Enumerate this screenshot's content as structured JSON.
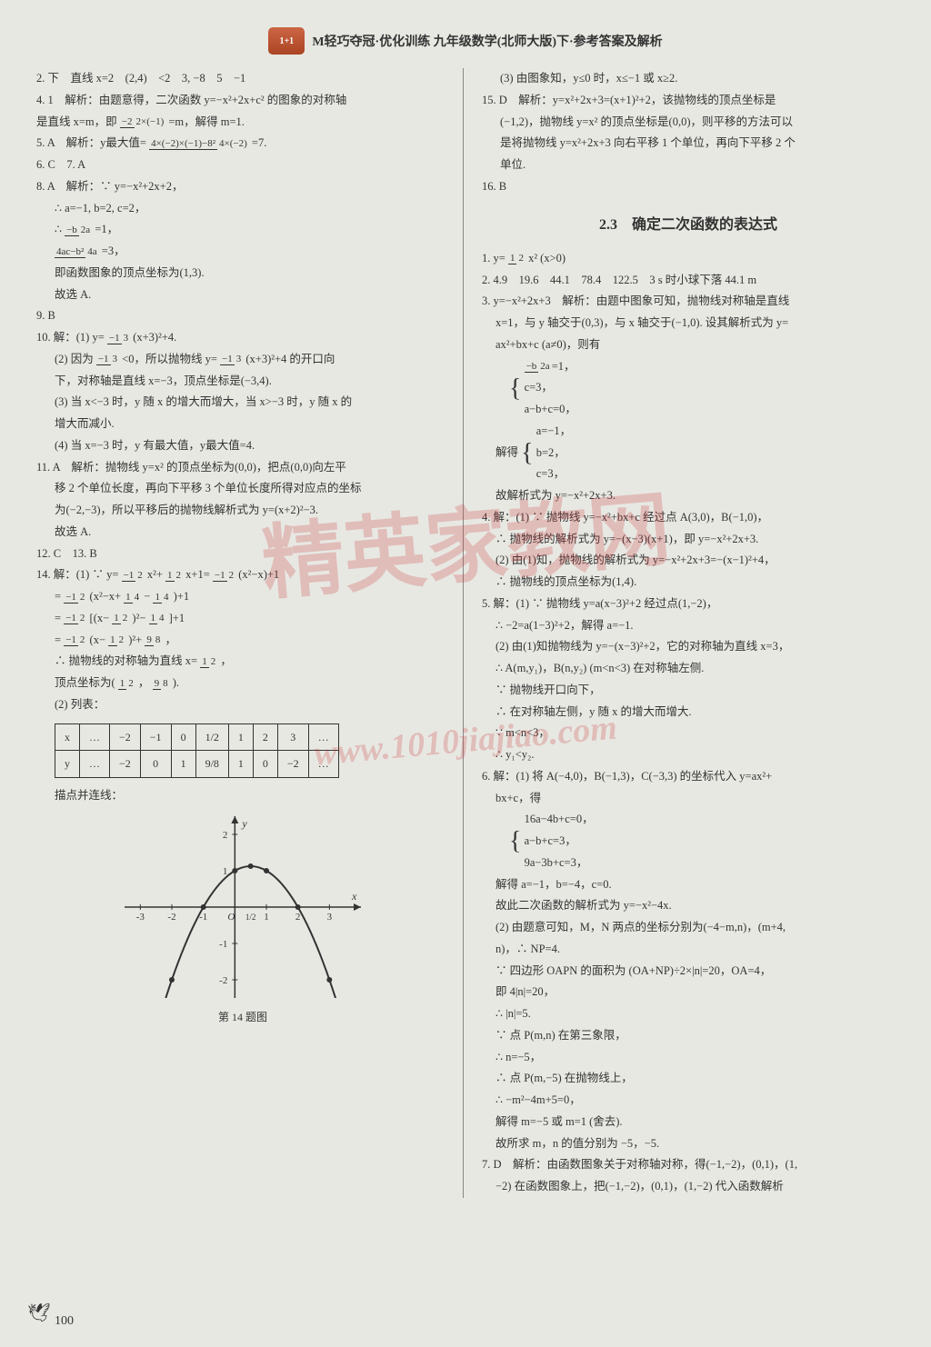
{
  "header": {
    "badge": "1+1",
    "title": "M轻巧夺冠·优化训练 九年级数学(北师大版)下·参考答案及解析"
  },
  "watermark": {
    "text": "精英家教网",
    "url": "www.1010jiajiao.com"
  },
  "left_column": {
    "line2": "2. 下　直线 x=2　(2,4)　<2　3, −8　5　−1",
    "line4_1": "4. 1　解析：由题意得，二次函数 y=−x²+2x+c² 的图象的对称轴",
    "line4_2": "是直线 x=m，即",
    "line4_frac": {
      "num": "−2",
      "den": "2×(−1)"
    },
    "line4_3": "=m，解得 m=1.",
    "line5_1": "5. A　解析：y最大值=",
    "line5_frac": {
      "num": "4×(−2)×(−1)−8²",
      "den": "4×(−2)"
    },
    "line5_2": "=7.",
    "line6": "6. C　7. A",
    "line8_1": "8. A　解析：∵ y=−x²+2x+2，",
    "line8_2": "∴ a=−1, b=2, c=2，",
    "line8_3": "∴",
    "line8_frac1": {
      "num": "−b",
      "den": "2a"
    },
    "line8_4": "=1，",
    "line8_frac2": {
      "num": "4ac−b²",
      "den": "4a"
    },
    "line8_5": "=3，",
    "line8_6": "即函数图象的顶点坐标为(1,3).",
    "line8_7": "故选 A.",
    "line9": "9. B",
    "line10_1": "10. 解：(1) y=",
    "line10_frac1": {
      "num": "−1",
      "den": "3"
    },
    "line10_2": "(x+3)²+4.",
    "line10_3": "(2) 因为",
    "line10_frac2": {
      "num": "−1",
      "den": "3"
    },
    "line10_4": "<0，所以抛物线 y=",
    "line10_frac3": {
      "num": "−1",
      "den": "3"
    },
    "line10_5": "(x+3)²+4 的开口向",
    "line10_6": "下，对称轴是直线 x=−3，顶点坐标是(−3,4).",
    "line10_7": "(3) 当 x<−3 时，y 随 x 的增大而增大，当 x>−3 时，y 随 x 的",
    "line10_8": "增大而减小.",
    "line10_9": "(4) 当 x=−3 时，y 有最大值，y最大值=4.",
    "line11_1": "11. A　解析：抛物线 y=x² 的顶点坐标为(0,0)，把点(0,0)向左平",
    "line11_2": "移 2 个单位长度，再向下平移 3 个单位长度所得对应点的坐标",
    "line11_3": "为(−2,−3)，所以平移后的抛物线解析式为 y=(x+2)²−3.",
    "line11_4": "故选 A.",
    "line12": "12. C　13. B",
    "line14_1": "14. 解：(1) ∵ y=",
    "line14_frac1": {
      "num": "−1",
      "den": "2"
    },
    "line14_2": "x²+",
    "line14_frac2": {
      "num": "1",
      "den": "2"
    },
    "line14_3": "x+1=",
    "line14_frac3": {
      "num": "−1",
      "den": "2"
    },
    "line14_4": "(x²−x)+1",
    "line14_5": "=",
    "line14_frac4": {
      "num": "−1",
      "den": "2"
    },
    "line14_6": "(x²−x+",
    "line14_frac5": {
      "num": "1",
      "den": "4"
    },
    "line14_7": "−",
    "line14_frac6": {
      "num": "1",
      "den": "4"
    },
    "line14_8": ")+1",
    "line14_9": "=",
    "line14_frac7": {
      "num": "−1",
      "den": "2"
    },
    "line14_10": "[(x−",
    "line14_frac8": {
      "num": "1",
      "den": "2"
    },
    "line14_11": ")²−",
    "line14_frac9": {
      "num": "1",
      "den": "4"
    },
    "line14_12": "]+1",
    "line14_13": "=",
    "line14_frac10": {
      "num": "−1",
      "den": "2"
    },
    "line14_14": "(x−",
    "line14_frac11": {
      "num": "1",
      "den": "2"
    },
    "line14_15": ")²+",
    "line14_frac12": {
      "num": "9",
      "den": "8"
    },
    "line14_16": "，",
    "line14_17": "∴ 抛物线的对称轴为直线 x=",
    "line14_frac13": {
      "num": "1",
      "den": "2"
    },
    "line14_18": "，",
    "line14_19": "顶点坐标为(",
    "line14_frac14": {
      "num": "1",
      "den": "2"
    },
    "line14_20": "，",
    "line14_frac15": {
      "num": "9",
      "den": "8"
    },
    "line14_21": ").",
    "line14_22": "(2) 列表：",
    "table": {
      "row_x": [
        "x",
        "…",
        "−2",
        "−1",
        "0",
        "1/2",
        "1",
        "2",
        "3",
        "…"
      ],
      "row_y": [
        "y",
        "…",
        "−2",
        "0",
        "1",
        "9/8",
        "1",
        "0",
        "−2",
        "…"
      ]
    },
    "line14_23": "描点并连线：",
    "chart": {
      "xlim": [
        -3.5,
        4
      ],
      "ylim": [
        -2.5,
        2.5
      ],
      "xticks": [
        -3,
        -2,
        -1,
        0,
        1,
        2,
        3
      ],
      "yticks": [
        -2,
        -1,
        1,
        2
      ],
      "axis_color": "#333",
      "curve_color": "#333",
      "point_color": "#333",
      "bg": "#e8e8e3",
      "points": [
        [
          -2,
          -2
        ],
        [
          -1,
          0
        ],
        [
          0,
          1
        ],
        [
          0.5,
          1.125
        ],
        [
          1,
          1
        ],
        [
          2,
          0
        ],
        [
          3,
          -2
        ]
      ],
      "xlabel": "x",
      "ylabel": "y",
      "origin_label": "O",
      "label_half": "1/2"
    },
    "chart_caption": "第 14 题图"
  },
  "right_column": {
    "line_r1": "(3) 由图象知，y≤0 时，x≤−1 或 x≥2.",
    "line15_1": "15. D　解析：y=x²+2x+3=(x+1)²+2，该抛物线的顶点坐标是",
    "line15_2": "(−1,2)，抛物线 y=x² 的顶点坐标是(0,0)，则平移的方法可以",
    "line15_3": "是将抛物线 y=x²+2x+3 向右平移 1 个单位，再向下平移 2 个",
    "line15_4": "单位.",
    "line16": "16. B",
    "section": "2.3　确定二次函数的表达式",
    "s1_1": "1. y=",
    "s1_frac": {
      "num": "1",
      "den": "2"
    },
    "s1_2": "x² (x>0)",
    "s2": "2. 4.9　19.6　44.1　78.4　122.5　3 s 时小球下落 44.1 m",
    "s3_1": "3. y=−x²+2x+3　解析：由题中图象可知，抛物线对称轴是直线",
    "s3_2": "x=1，与 y 轴交于(0,3)，与 x 轴交于(−1,0). 设其解析式为 y=",
    "s3_3": "ax²+bx+c (a≠0)，则有",
    "s3_eq1_a": {
      "num": "−b",
      "den": "2a"
    },
    "s3_eq1_b": "=1，",
    "s3_eq2": "c=3，",
    "s3_eq3": "a−b+c=0，",
    "s3_4": "解得",
    "s3_sol1": "a=−1，",
    "s3_sol2": "b=2，",
    "s3_sol3": "c=3，",
    "s3_5": "故解析式为 y=−x²+2x+3.",
    "s4_1": "4. 解：(1) ∵ 抛物线 y=−x²+bx+c 经过点 A(3,0)，B(−1,0)，",
    "s4_2": "∴ 抛物线的解析式为 y=−(x−3)(x+1)，即 y=−x²+2x+3.",
    "s4_3": "(2) 由(1)知，抛物线的解析式为 y=−x²+2x+3=−(x−1)²+4，",
    "s4_4": "∴ 抛物线的顶点坐标为(1,4).",
    "s5_1": "5. 解：(1) ∵ 抛物线 y=a(x−3)²+2 经过点(1,−2)，",
    "s5_2": "∴ −2=a(1−3)²+2，解得 a=−1.",
    "s5_3": "(2) 由(1)知抛物线为 y=−(x−3)²+2，它的对称轴为直线 x=3，",
    "s5_4": "∴ A(m,y₁)，B(n,y₂) (m<n<3) 在对称轴左侧.",
    "s5_5": "∵ 抛物线开口向下，",
    "s5_6": "∴ 在对称轴左侧，y 随 x 的增大而增大.",
    "s5_7": "∵ m<n<3，",
    "s5_8": "∴ y₁<y₂.",
    "s6_1": "6. 解：(1) 将 A(−4,0)，B(−1,3)，C(−3,3) 的坐标代入 y=ax²+",
    "s6_2": "bx+c，得",
    "s6_eq1": "16a−4b+c=0，",
    "s6_eq2": "a−b+c=3，",
    "s6_eq3": "9a−3b+c=3，",
    "s6_3": "解得 a=−1，b=−4，c=0.",
    "s6_4": "故此二次函数的解析式为 y=−x²−4x.",
    "s6_5": "(2) 由题意可知，M，N 两点的坐标分别为(−4−m,n)，(m+4,",
    "s6_6": "n)，∴ NP=4.",
    "s6_7": "∵ 四边形 OAPN 的面积为 (OA+NP)÷2×|n|=20，OA=4，",
    "s6_8": "即 4|n|=20，",
    "s6_9": "∴ |n|=5.",
    "s6_10": "∵ 点 P(m,n) 在第三象限，",
    "s6_11": "∴ n=−5，",
    "s6_12": "∴ 点 P(m,−5) 在抛物线上，",
    "s6_13": "∴ −m²−4m+5=0，",
    "s6_14": "解得 m=−5 或 m=1 (舍去).",
    "s6_15": "故所求 m，n 的值分别为 −5，−5.",
    "s7_1": "7. D　解析：由函数图象关于对称轴对称，得(−1,−2)，(0,1)，(1,",
    "s7_2": "−2) 在函数图象上，把(−1,−2)，(0,1)，(1,−2) 代入函数解析"
  },
  "page_number": "100"
}
